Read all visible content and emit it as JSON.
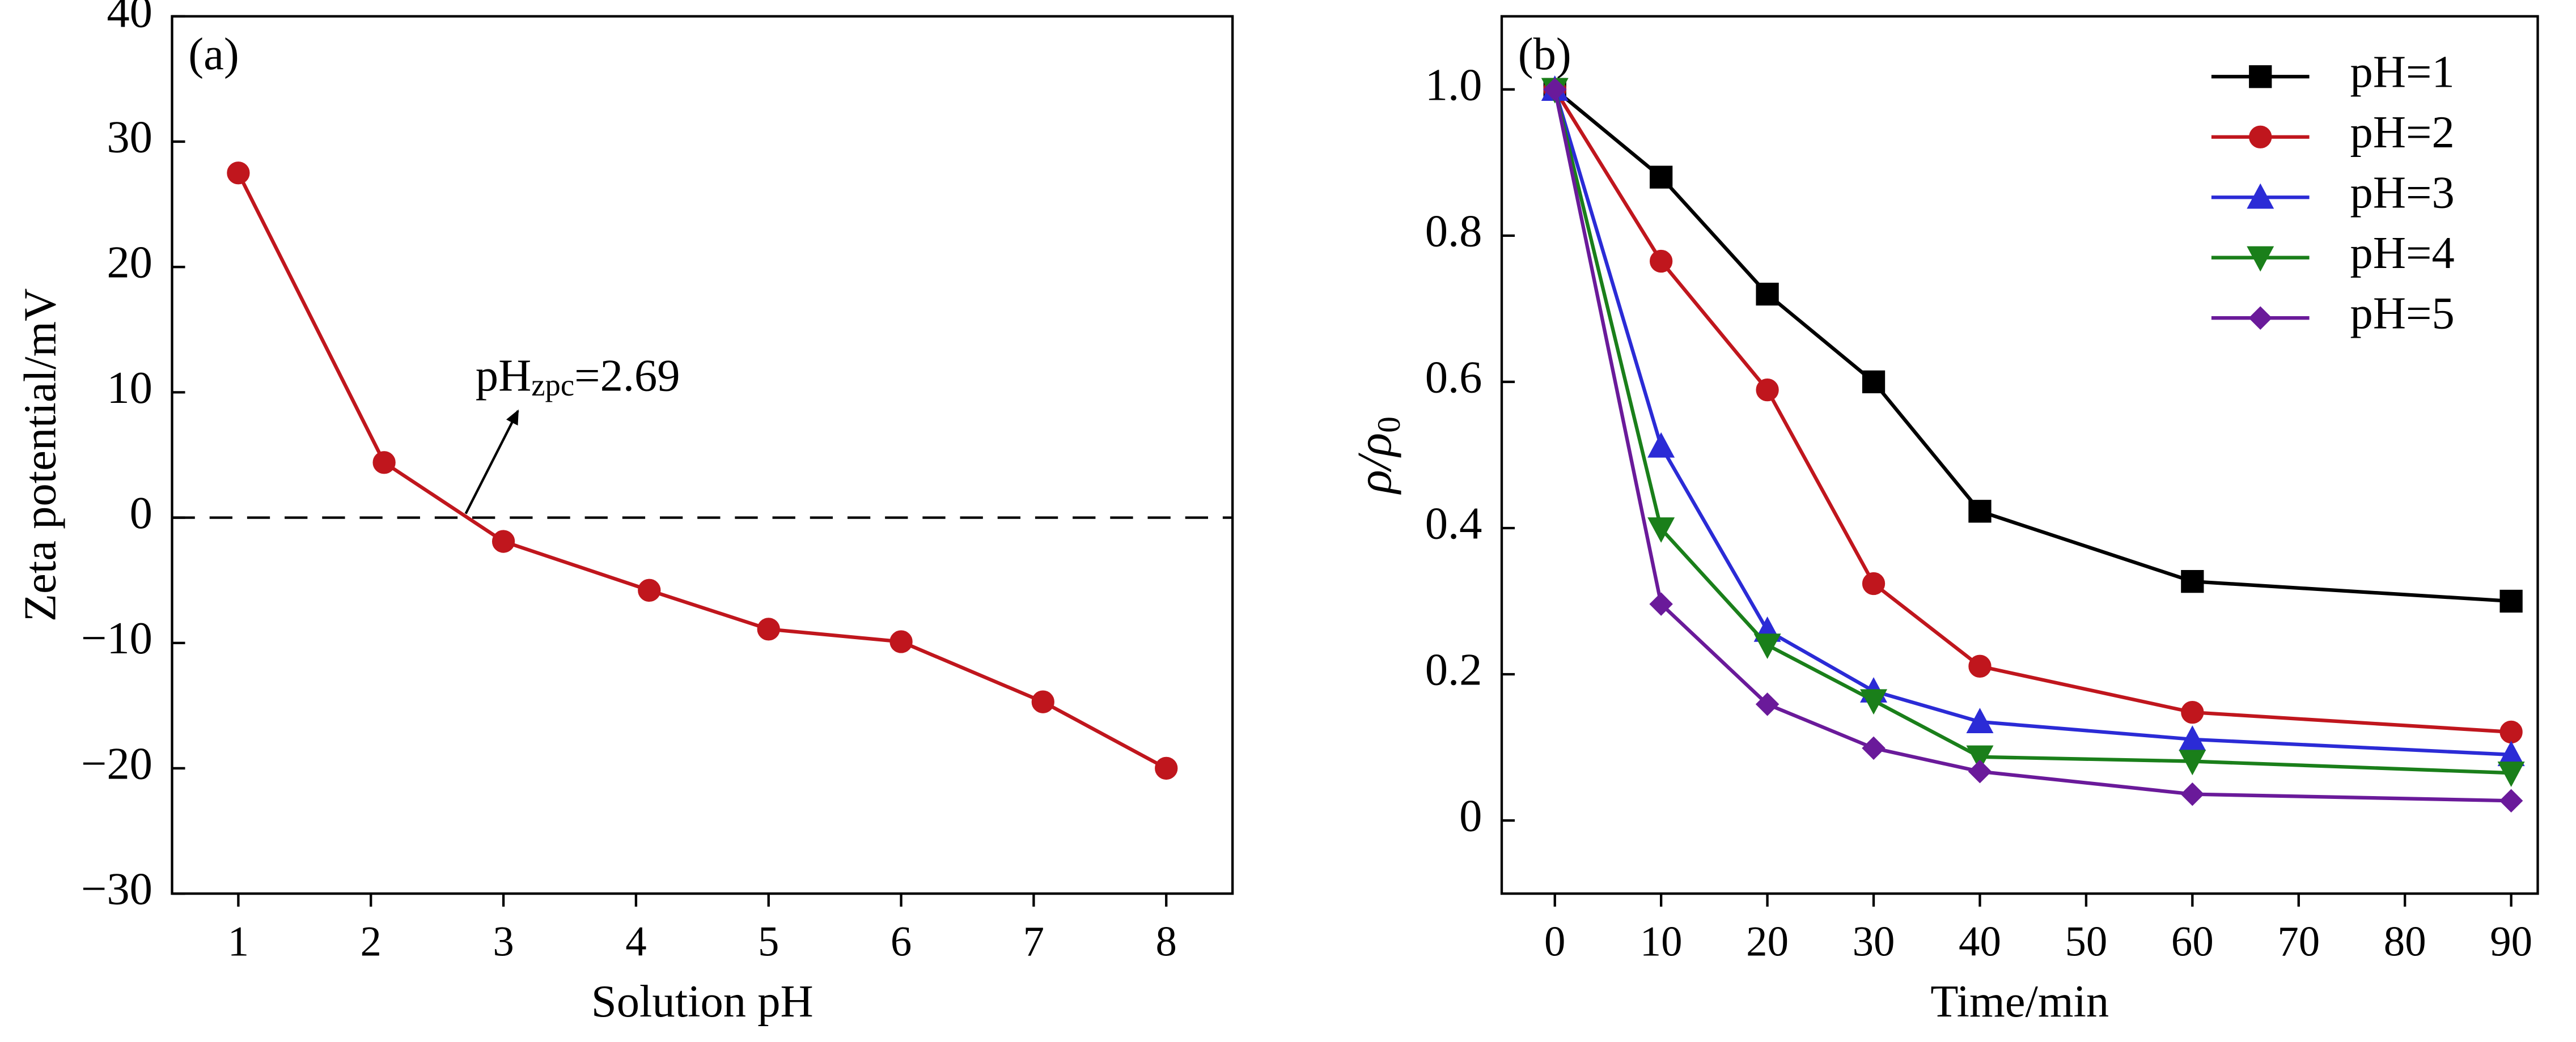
{
  "chart_data": [
    {
      "type": "line",
      "panel": "(a)",
      "xlabel": "Solution pH",
      "ylabel": "Zeta potential/mV",
      "x": [
        1,
        2.1,
        3,
        4.1,
        5,
        6,
        7.07,
        8
      ],
      "values": [
        27.5,
        4.4,
        -1.9,
        -5.8,
        -8.9,
        -9.9,
        -14.7,
        -20
      ],
      "color": "#c0161d",
      "marker": "circle",
      "xlim": [
        0.5,
        8.5
      ],
      "xticks": [
        1,
        2,
        3,
        4,
        5,
        6,
        7,
        8
      ],
      "ylim": [
        -30,
        40
      ],
      "yticks": [
        {
          "value": -30,
          "label": "−30"
        },
        {
          "value": -20,
          "label": "−20"
        },
        {
          "value": -10,
          "label": "−10"
        },
        0,
        10,
        20,
        30,
        40
      ],
      "hline": 0,
      "annotation": {
        "text": "pH",
        "subscript": "zpc",
        "suffix": "=2.69"
      }
    },
    {
      "type": "line",
      "panel": "(b)",
      "xlabel": "Time/min",
      "ylabel": {
        "text": "ρ/ρ",
        "subscript": "0"
      },
      "x": [
        0,
        10,
        20,
        30,
        40,
        60,
        90
      ],
      "series": [
        {
          "name": "pH=1",
          "color": "#000000",
          "marker": "square",
          "values": [
            1.0,
            0.88,
            0.72,
            0.6,
            0.423,
            0.327,
            0.3
          ]
        },
        {
          "name": "pH=2",
          "color": "#c0161d",
          "marker": "circle",
          "values": [
            1.0,
            0.765,
            0.589,
            0.324,
            0.211,
            0.148,
            0.121
          ]
        },
        {
          "name": "pH=3",
          "color": "#2b2bd6",
          "marker": "triangle-up",
          "values": [
            1.0,
            0.512,
            0.26,
            0.177,
            0.135,
            0.111,
            0.09
          ]
        },
        {
          "name": "pH=4",
          "color": "#1a7f1a",
          "marker": "triangle-down",
          "values": [
            1.0,
            0.399,
            0.24,
            0.164,
            0.087,
            0.081,
            0.065
          ]
        },
        {
          "name": "pH=5",
          "color": "#6a1a9a",
          "marker": "diamond",
          "values": [
            1.0,
            0.296,
            0.159,
            0.099,
            0.067,
            0.036,
            0.027
          ]
        }
      ],
      "xlim": [
        -5,
        92.5
      ],
      "xticks": [
        0,
        10,
        20,
        30,
        40,
        50,
        60,
        70,
        80,
        90
      ],
      "ylim": [
        -0.1,
        1.1
      ],
      "yticks": [
        0,
        0.2,
        0.4,
        0.6,
        0.8,
        {
          "value": 1,
          "label": "1.0"
        }
      ],
      "legend": "upper right"
    }
  ]
}
